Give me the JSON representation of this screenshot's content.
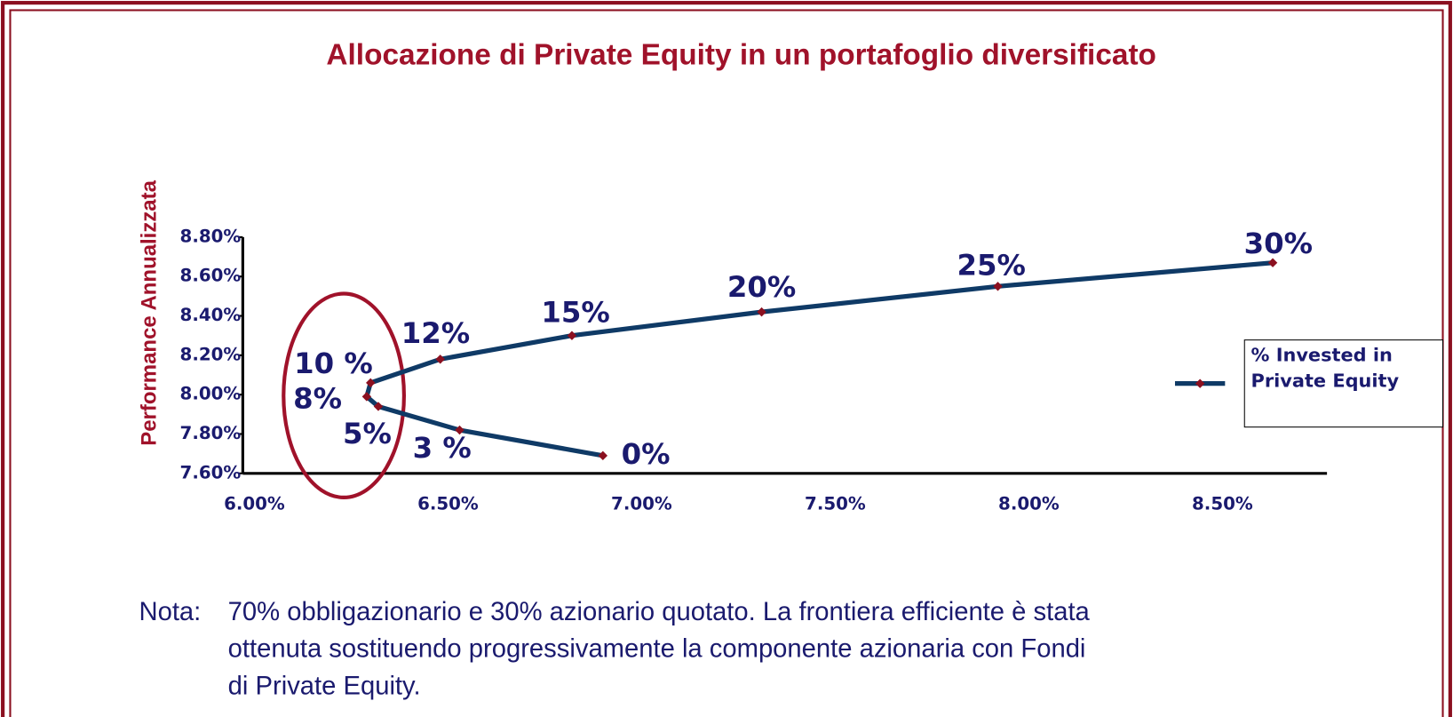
{
  "chart_data": {
    "type": "line",
    "title": "Allocazione di Private Equity  in un portafoglio diversificato",
    "y_label": "Performance Annualizzata",
    "x": [
      6.9,
      6.53,
      6.32,
      6.29,
      6.3,
      6.48,
      6.82,
      7.31,
      7.92,
      8.63
    ],
    "series": [
      {
        "name": "% Invested in Private Equity",
        "color": "#0f3a66",
        "marker_color": "#8b1020",
        "values": [
          7.69,
          7.82,
          7.94,
          7.99,
          8.06,
          8.18,
          8.3,
          8.42,
          8.55,
          8.67
        ]
      }
    ],
    "point_labels": [
      "0%",
      "3 %",
      "5%",
      "8%",
      "10 %",
      "12%",
      "15%",
      "20%",
      "25%",
      "30%"
    ],
    "xlim": [
      5.97,
      8.77
    ],
    "xticks": [
      {
        "value": 6.0,
        "label": "6.00%"
      },
      {
        "value": 6.5,
        "label": "6.50%"
      },
      {
        "value": 7.0,
        "label": "7.00%"
      },
      {
        "value": 7.5,
        "label": "7.50%"
      },
      {
        "value": 8.0,
        "label": "8.00%"
      },
      {
        "value": 8.5,
        "label": "8.50%"
      }
    ],
    "ylim": [
      7.6,
      8.8
    ],
    "yticks": [
      {
        "value": 7.6,
        "label": "7.60%"
      },
      {
        "value": 7.8,
        "label": "7.80%"
      },
      {
        "value": 8.0,
        "label": "8.00%"
      },
      {
        "value": 8.2,
        "label": "8.20%"
      },
      {
        "value": 8.4,
        "label": "8.40%"
      },
      {
        "value": 8.6,
        "label": "8.60%"
      },
      {
        "value": 8.8,
        "label": "8.80%"
      }
    ],
    "legend": "right",
    "note_label": "Nota:",
    "note_lines": [
      "70% obbligazionario e 30% azionario quotato. La frontiera efficiente è stata",
      "ottenuta sostituendo progressivamente la  componente azionaria con Fondi",
      "di Private Equity."
    ]
  }
}
